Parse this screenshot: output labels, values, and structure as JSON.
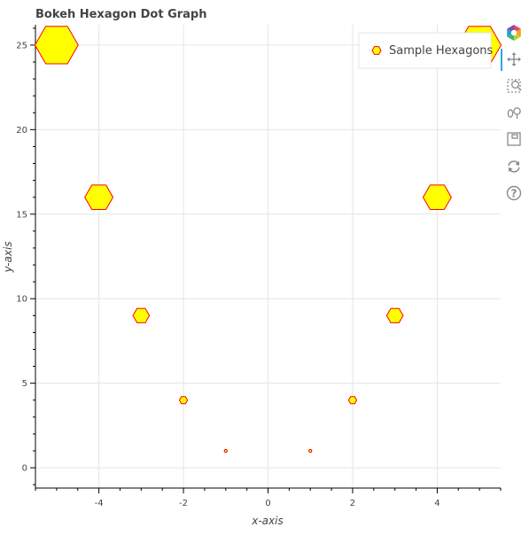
{
  "chart_data": {
    "type": "scatter",
    "title": "Bokeh Hexagon Dot Graph",
    "xlabel": "x-axis",
    "ylabel": "y-axis",
    "xlim": [
      -5.5,
      5.5
    ],
    "ylim": [
      -1.2,
      26.2
    ],
    "xticks": [
      -4,
      -2,
      0,
      2,
      4
    ],
    "yticks": [
      0,
      5,
      10,
      15,
      20,
      25
    ],
    "grid": true,
    "legend_position": "top-right",
    "series": [
      {
        "name": "Sample Hexagons",
        "marker": "hexagon",
        "fill_color": "#ffff00",
        "line_color": "#ff0000",
        "x": [
          -5,
          -4,
          -3,
          -2,
          -1,
          1,
          2,
          3,
          4,
          5
        ],
        "y": [
          25,
          16,
          9,
          4,
          1,
          1,
          4,
          9,
          16,
          25
        ],
        "size": [
          25,
          16,
          9,
          4,
          1,
          1,
          4,
          9,
          16,
          25
        ]
      }
    ]
  },
  "toolbar": {
    "logo_icon": "bokeh-logo-icon",
    "tools": [
      "pan-icon",
      "box-zoom-icon",
      "wheel-zoom-icon",
      "save-icon",
      "reset-icon",
      "help-icon"
    ],
    "accent": "#26aae1"
  }
}
